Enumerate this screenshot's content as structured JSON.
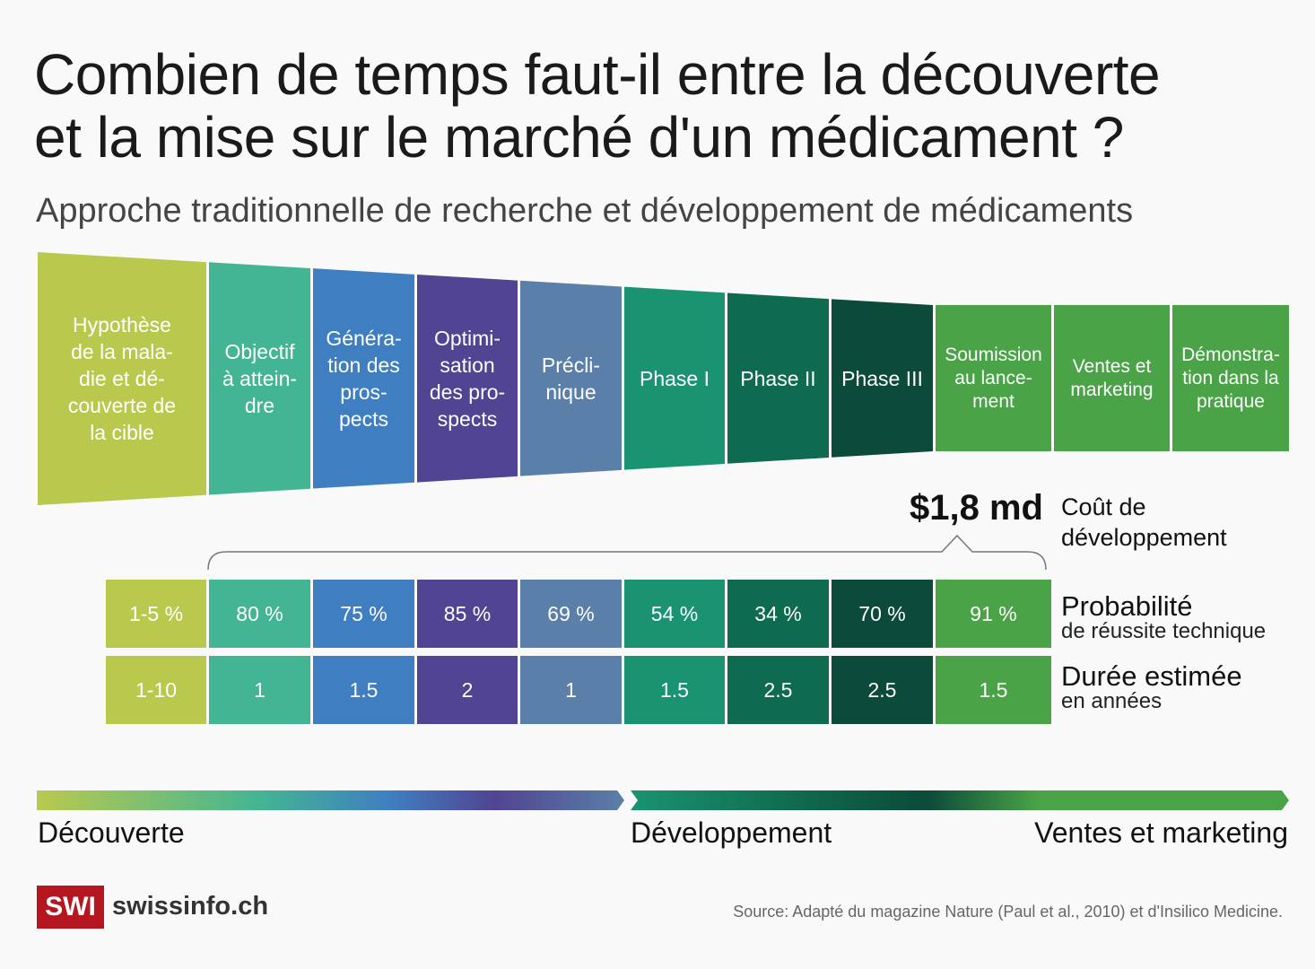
{
  "title_line1": "Combien de temps faut-il entre la découverte",
  "title_line2": "et la mise sur le marché d'un médicament ?",
  "subtitle": "Approche traditionnelle de recherche et développement de médicaments",
  "stages": [
    {
      "label": "Hypothèse\nde la mala-\ndie et dé-\ncouverte de\nla cible",
      "color": "#b9c94e"
    },
    {
      "label": "Objectif\nà attein-\ndre",
      "color": "#43b593"
    },
    {
      "label": "Généra-\ntion des\npros-\npects",
      "color": "#3f7fc1"
    },
    {
      "label": "Optimi-\nsation\ndes pro-\nspects",
      "color": "#514492"
    },
    {
      "label": "Précli-\nnique",
      "color": "#5a7fa8"
    },
    {
      "label": "Phase I",
      "color": "#1a9370"
    },
    {
      "label": "Phase II",
      "color": "#0f6b4f"
    },
    {
      "label": "Phase III",
      "color": "#0c4a3a"
    },
    {
      "label": "Soumission\nau lance-\nment",
      "color": "#4aa347"
    },
    {
      "label": "Ventes et\nmarketing",
      "color": "#4aa347"
    },
    {
      "label": "Démonstra-\ntion dans la\npratique",
      "color": "#4aa347"
    }
  ],
  "cost": {
    "value": "$1,8 md",
    "label": "Coût de\ndéveloppement"
  },
  "probability": {
    "title": "Probabilité",
    "subtitle": "de réussite technique",
    "values": [
      "1-5 %",
      "80 %",
      "75 %",
      "85 %",
      "69 %",
      "54 %",
      "34 %",
      "70 %",
      "91 %"
    ]
  },
  "duration": {
    "title": "Durée estimée",
    "subtitle": "en années",
    "values": [
      "1-10",
      "1",
      "1.5",
      "2",
      "1",
      "1.5",
      "2.5",
      "2.5",
      "1.5"
    ]
  },
  "phases": [
    "Découverte",
    "Développement",
    "Ventes et marketing"
  ],
  "source": "Source: Adapté du magazine Nature (Paul et al., 2010) et d'Insilico Medicine.",
  "logo": {
    "mark": "SWI",
    "name": "swissinfo.ch"
  }
}
